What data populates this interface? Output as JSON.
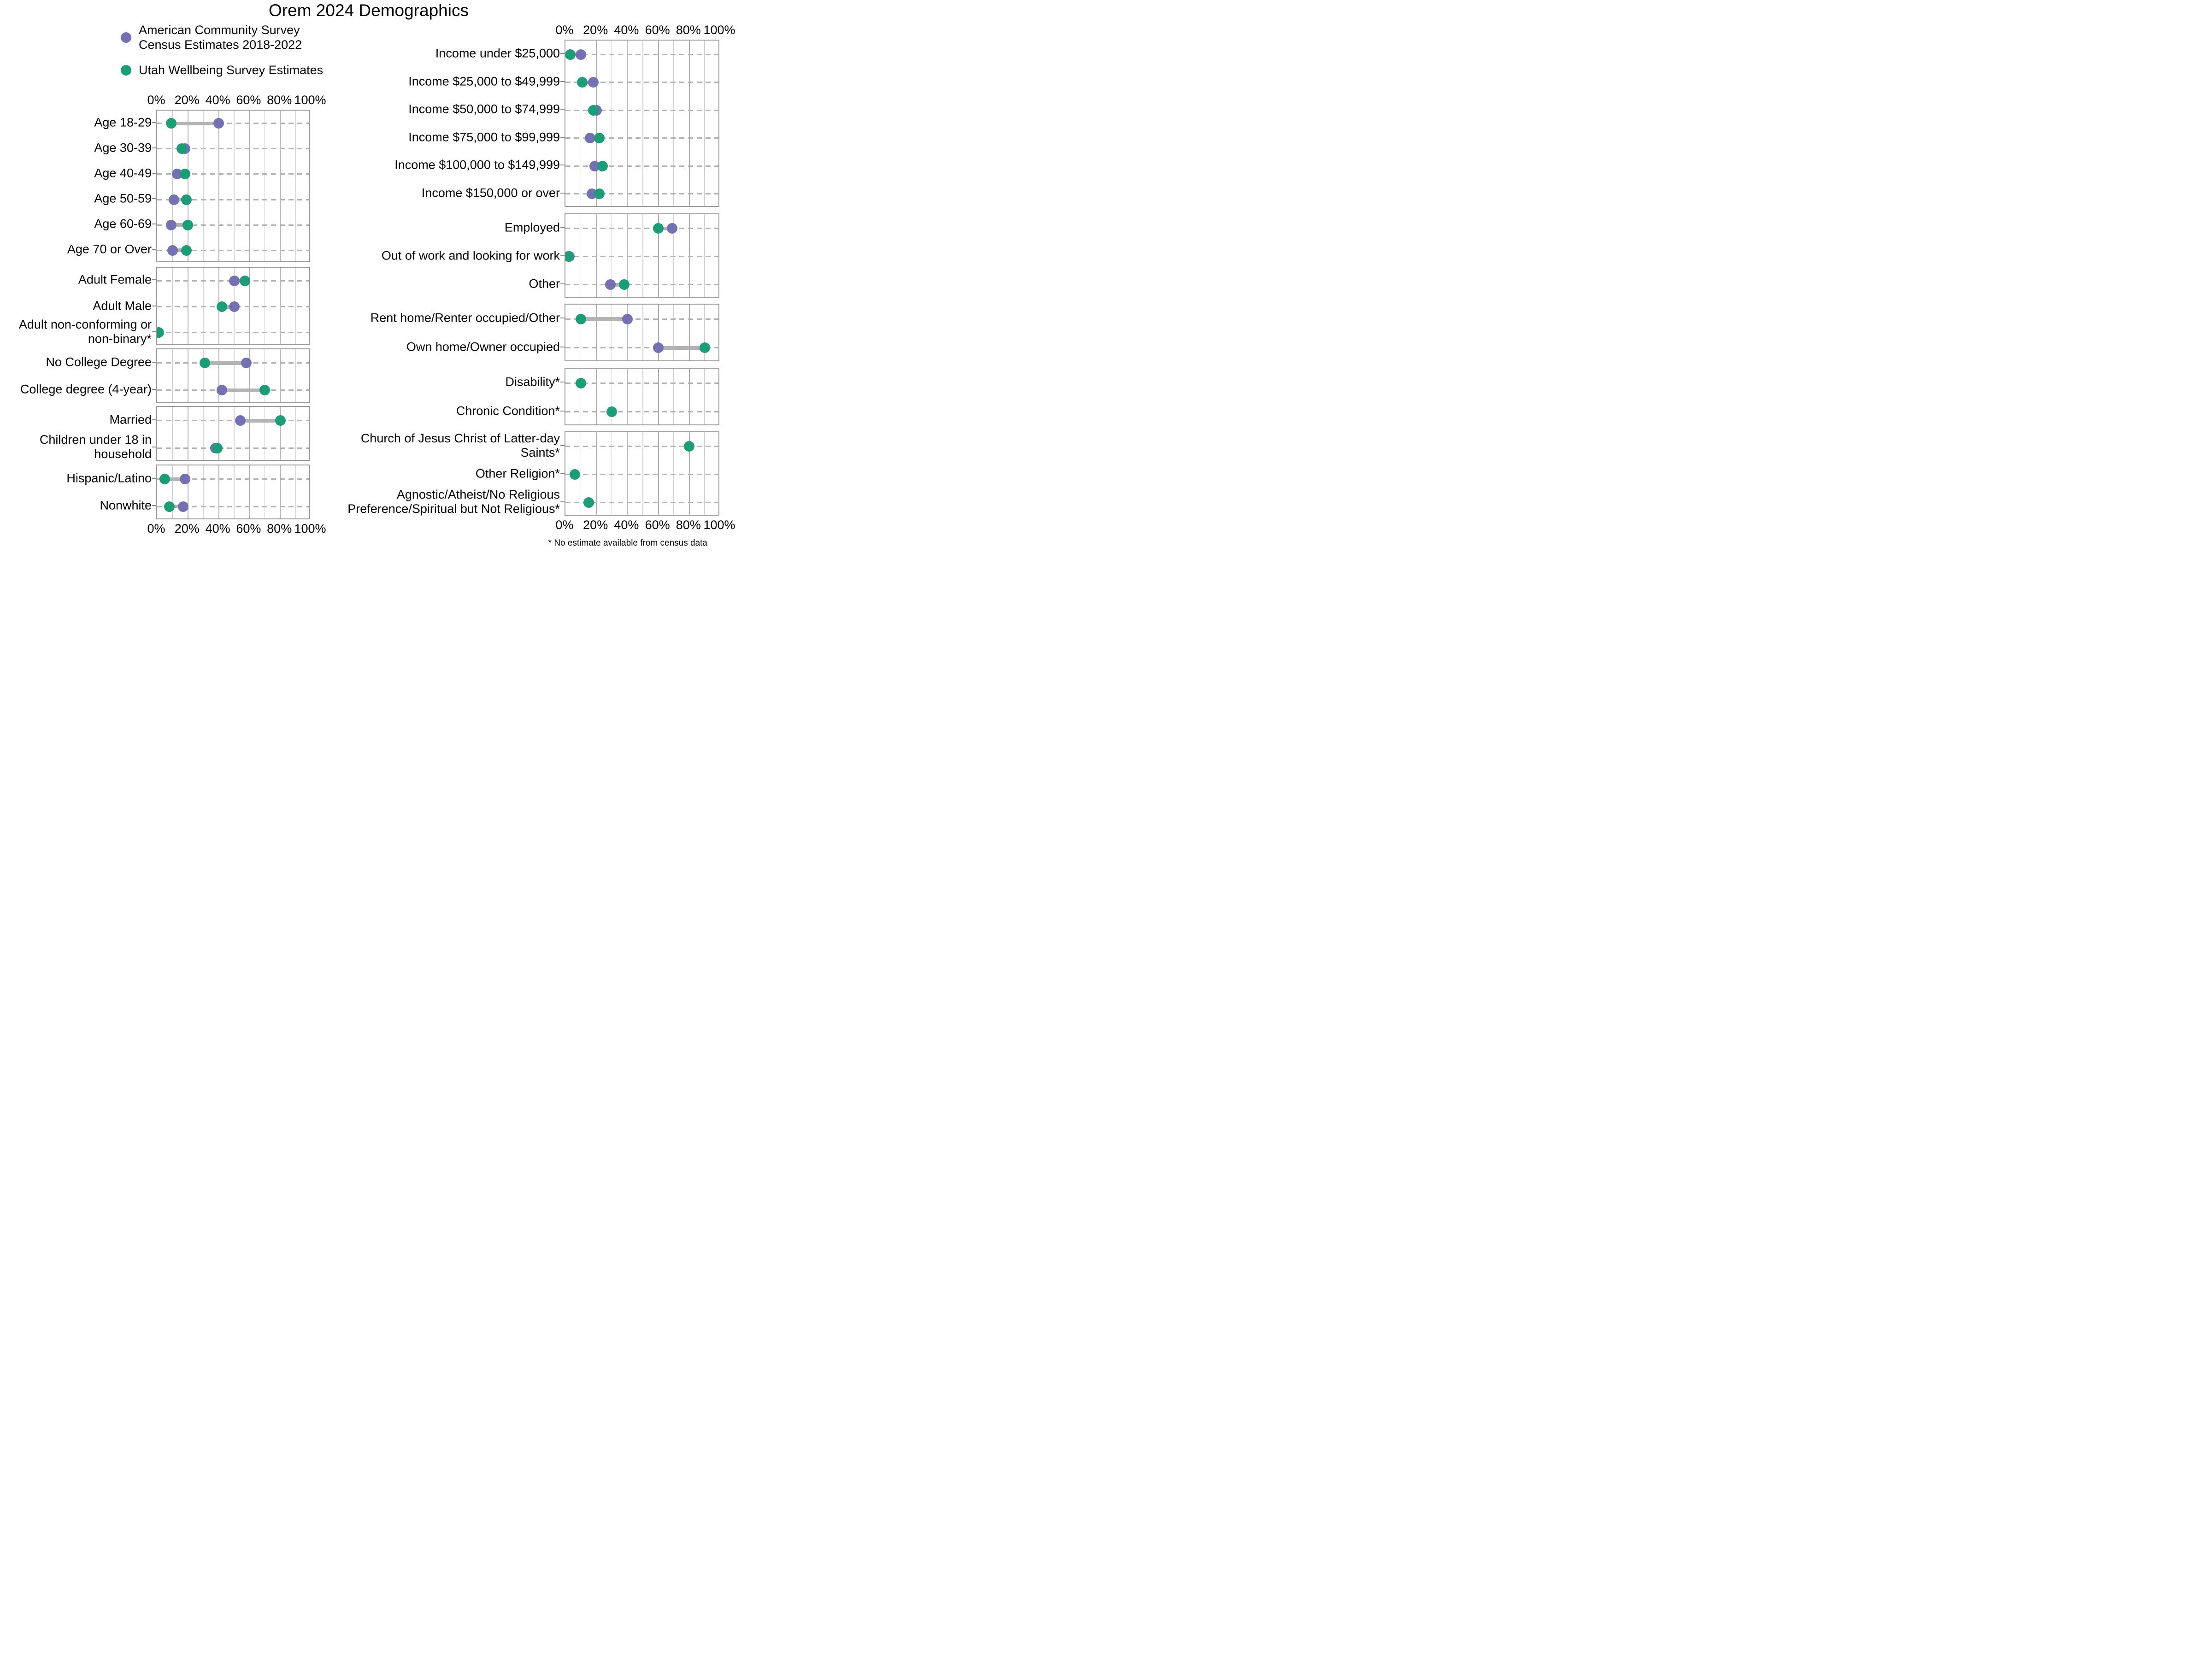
{
  "title": "Orem 2024 Demographics",
  "legend": {
    "census": {
      "line1": "American Community Survey",
      "line2": "Census Estimates 2018-2022",
      "color": "#7570B3"
    },
    "survey": {
      "label": "Utah Wellbeing Survey Estimates",
      "color": "#1B9E77"
    }
  },
  "footnote": "* No estimate available from census data",
  "axis": {
    "ticks": [
      0,
      20,
      40,
      60,
      80,
      100
    ],
    "tick_labels": [
      "0%",
      "20%",
      "40%",
      "60%",
      "80%",
      "100%"
    ],
    "minor_step": 10,
    "range": [
      0,
      100
    ]
  },
  "chart_data": {
    "type": "dumbbell",
    "title": "Orem 2024 Demographics",
    "unit": "percent",
    "series": [
      {
        "id": "census",
        "name": "American Community Survey Census Estimates 2018-2022",
        "color": "#7570B3"
      },
      {
        "id": "survey",
        "name": "Utah Wellbeing Survey Estimates",
        "color": "#1B9E77"
      }
    ],
    "connector_color": "#b3b3b3",
    "columns": [
      {
        "panels": [
          {
            "key": "age",
            "rows": [
              {
                "label": "Age 18-29",
                "census": 40,
                "survey": 9
              },
              {
                "label": "Age 30-39",
                "census": 18,
                "survey": 16
              },
              {
                "label": "Age 40-49",
                "census": 13,
                "survey": 18
              },
              {
                "label": "Age 50-59",
                "census": 11,
                "survey": 19
              },
              {
                "label": "Age 60-69",
                "census": 9,
                "survey": 20
              },
              {
                "label": "Age 70 or Over",
                "census": 10,
                "survey": 19
              }
            ]
          },
          {
            "key": "gender",
            "rows": [
              {
                "label": "Adult Female",
                "census": 50,
                "survey": 57
              },
              {
                "label": "Adult Male",
                "census": 50,
                "survey": 42
              },
              {
                "label": "Adult non-conforming or non-binary*",
                "census": null,
                "survey": 1
              }
            ]
          },
          {
            "key": "education",
            "rows": [
              {
                "label": "No College Degree",
                "census": 58,
                "survey": 31
              },
              {
                "label": "College degree (4-year)",
                "census": 42,
                "survey": 70
              }
            ]
          },
          {
            "key": "family",
            "rows": [
              {
                "label": "Married",
                "census": 54,
                "survey": 80
              },
              {
                "label": "Children under 18 in household",
                "census": 38,
                "survey": 39
              }
            ]
          },
          {
            "key": "race",
            "rows": [
              {
                "label": "Hispanic/Latino",
                "census": 18,
                "survey": 5
              },
              {
                "label": "Nonwhite",
                "census": 17,
                "survey": 8
              }
            ]
          }
        ]
      },
      {
        "panels": [
          {
            "key": "income",
            "rows": [
              {
                "label": "Income under $25,000",
                "census": 10,
                "survey": 3
              },
              {
                "label": "Income $25,000 to $49,999",
                "census": 18,
                "survey": 11
              },
              {
                "label": "Income $50,000 to $74,999",
                "census": 20,
                "survey": 18
              },
              {
                "label": "Income $75,000 to $99,999",
                "census": 16,
                "survey": 22
              },
              {
                "label": "Income $100,000 to $149,999",
                "census": 19,
                "survey": 24
              },
              {
                "label": "Income $150,000 or over",
                "census": 17,
                "survey": 22
              }
            ]
          },
          {
            "key": "employment",
            "rows": [
              {
                "label": "Employed",
                "census": 69,
                "survey": 60
              },
              {
                "label": "Out of work and looking for work",
                "census": 2.5,
                "survey": 2
              },
              {
                "label": "Other",
                "census": 29,
                "survey": 38
              }
            ]
          },
          {
            "key": "housing",
            "rows": [
              {
                "label": "Rent home/Renter occupied/Other",
                "census": 40,
                "survey": 10
              },
              {
                "label": "Own home/Owner occupied",
                "census": 60,
                "survey": 90
              }
            ]
          },
          {
            "key": "health",
            "rows": [
              {
                "label": "Disability*",
                "census": null,
                "survey": 10
              },
              {
                "label": "Chronic Condition*",
                "census": null,
                "survey": 30
              }
            ]
          },
          {
            "key": "religion",
            "rows": [
              {
                "label": "Church of Jesus Christ of Latter-day Saints*",
                "census": null,
                "survey": 80
              },
              {
                "label": "Other Religion*",
                "census": null,
                "survey": 6
              },
              {
                "label": "Agnostic/Atheist/No Religious Preference/Spiritual but Not Religious*",
                "census": null,
                "survey": 15
              }
            ]
          }
        ]
      }
    ]
  }
}
